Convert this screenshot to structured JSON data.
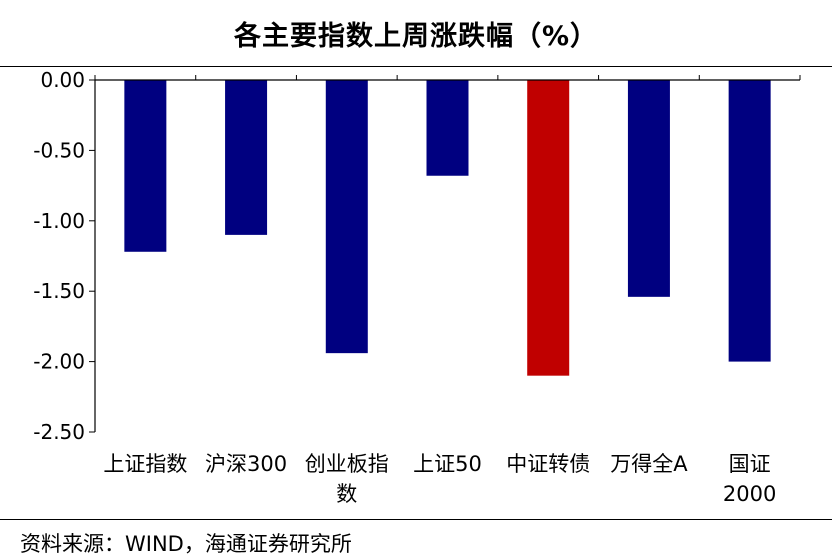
{
  "header": {
    "title": "各主要指数上周涨跌幅（%）"
  },
  "footer": {
    "source": "资料来源：WIND，海通证券研究所"
  },
  "colors": {
    "default_bar": "#000080",
    "highlight_bar": "#C00000",
    "axis": "#000000"
  },
  "chart_data": {
    "type": "bar",
    "title": "各主要指数上周涨跌幅（%）",
    "xlabel": "",
    "ylabel": "",
    "categories": [
      "上证指数",
      "沪深300",
      "创业板指数",
      "上证50",
      "中证转债",
      "万得全A",
      "国证2000"
    ],
    "category_label_lines": [
      [
        "上证指数"
      ],
      [
        "沪深300"
      ],
      [
        "创业板指",
        "数"
      ],
      [
        "上证50"
      ],
      [
        "中证转债"
      ],
      [
        "万得全A"
      ],
      [
        "国证",
        "2000"
      ]
    ],
    "values": [
      -1.22,
      -1.1,
      -1.94,
      -0.68,
      -2.1,
      -1.54,
      -2.0
    ],
    "highlight_index": 4,
    "ylim": [
      -2.5,
      0
    ],
    "yticks": [
      0,
      -0.5,
      -1.0,
      -1.5,
      -2.0,
      -2.5
    ],
    "ytick_labels": [
      "0.00",
      "-0.50",
      "-1.00",
      "-1.50",
      "-2.00",
      "-2.50"
    ],
    "grid": false,
    "legend": "none"
  }
}
